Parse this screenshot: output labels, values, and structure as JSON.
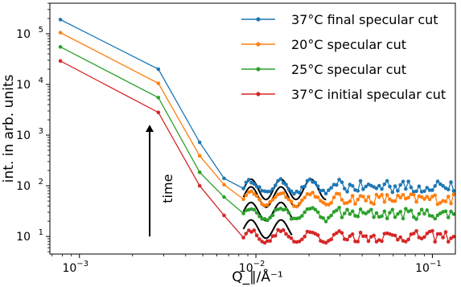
{
  "chart_data": {
    "type": "line",
    "xlabel": "Q_∥/Å⁻¹",
    "ylabel": "int. in arb. units",
    "xscale": "log",
    "yscale": "log",
    "xlim": [
      0.00068,
      0.135
    ],
    "ylim": [
      4.5,
      400000
    ],
    "grid": false,
    "legend_position": "top-right",
    "x_ticks": [
      {
        "value": 0.001,
        "base": "10",
        "exp": "−3"
      },
      {
        "value": 0.01,
        "base": "10",
        "exp": "−2"
      },
      {
        "value": 0.1,
        "base": "10",
        "exp": "−1"
      }
    ],
    "y_ticks": [
      {
        "value": 10,
        "base": "10",
        "exp": "1"
      },
      {
        "value": 100,
        "base": "10",
        "exp": "2"
      },
      {
        "value": 1000,
        "base": "10",
        "exp": "3"
      },
      {
        "value": 10000,
        "base": "10",
        "exp": "4"
      },
      {
        "value": 100000,
        "base": "10",
        "exp": "5"
      }
    ],
    "series": [
      {
        "name": "37°C final specular cut",
        "color": "#1f77b4",
        "main_x": [
          0.00078,
          0.0028,
          0.0048,
          0.0066
        ],
        "main_y": [
          190000,
          20000,
          720,
          140
        ],
        "tail": {
          "x_start": 0.0085,
          "x_end": 0.132,
          "n": 80,
          "base": 95,
          "noise": 0.17,
          "spikes": [
            [
              0.055,
              125
            ],
            [
              0.072,
              122
            ],
            [
              0.108,
              122
            ]
          ]
        }
      },
      {
        "name": "20°C specular cut",
        "color": "#ff7f0e",
        "main_x": [
          0.00078,
          0.0028,
          0.0048,
          0.0066
        ],
        "main_y": [
          105000,
          10500,
          390,
          105
        ],
        "tail": {
          "x_start": 0.0085,
          "x_end": 0.132,
          "n": 80,
          "base": 55,
          "noise": 0.15,
          "spikes": []
        }
      },
      {
        "name": "25°C specular cut",
        "color": "#2ca02c",
        "main_x": [
          0.00078,
          0.0028,
          0.0048,
          0.0066
        ],
        "main_y": [
          55000,
          5500,
          185,
          60
        ],
        "tail": {
          "x_start": 0.0085,
          "x_end": 0.132,
          "n": 80,
          "base": 28,
          "noise": 0.15,
          "spikes": []
        }
      },
      {
        "name": "37°C initial specular cut",
        "color": "#d62728",
        "main_x": [
          0.00078,
          0.0028,
          0.0048,
          0.0066
        ],
        "main_y": [
          29000,
          2800,
          100,
          26
        ],
        "tail": {
          "x_start": 0.0085,
          "x_end": 0.132,
          "n": 80,
          "base": 10,
          "noise": 0.16,
          "spikes": []
        }
      }
    ],
    "fit_curves": [
      {
        "x_start": 0.0085,
        "x_end": 0.025,
        "base": 85,
        "amp": 0.2
      },
      {
        "x_start": 0.0085,
        "x_end": 0.018,
        "base": 60,
        "amp": 0.2
      },
      {
        "x_start": 0.0085,
        "x_end": 0.016,
        "base": 31,
        "amp": 0.18
      },
      {
        "x_start": 0.0085,
        "x_end": 0.016,
        "base": 14,
        "amp": 0.18
      }
    ],
    "annotation": {
      "text": "time",
      "arrow_from_y": 10,
      "arrow_to_y": 1600,
      "arrow_x": 0.0025
    }
  }
}
